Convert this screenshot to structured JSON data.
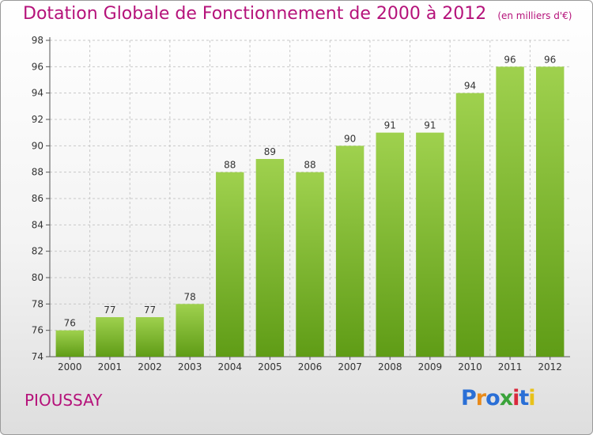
{
  "header": {
    "title": "Dotation Globale de Fonctionnement de 2000 à 2012",
    "subtitle": "(en milliers d'€)"
  },
  "footer": {
    "town": "PIOUSSAY",
    "logo_text": "Proxiti"
  },
  "colors": {
    "title": "#b5127a",
    "bar_light": "#9fd14e",
    "bar_dark": "#5f9c16",
    "logo": [
      "#2a6fd6",
      "#e88a1a",
      "#2a6fd6",
      "#3aa33a",
      "#d9283c",
      "#2a6fd6",
      "#e8c21a"
    ]
  },
  "chart_data": {
    "type": "bar",
    "title": "Dotation Globale de Fonctionnement de 2000 à 2012",
    "subtitle": "(en milliers d'€)",
    "categories": [
      "2000",
      "2001",
      "2002",
      "2003",
      "2004",
      "2005",
      "2006",
      "2007",
      "2008",
      "2009",
      "2010",
      "2011",
      "2012"
    ],
    "values": [
      76,
      77,
      77,
      78,
      88,
      89,
      88,
      90,
      91,
      91,
      94,
      96,
      96
    ],
    "y_ticks": [
      74,
      76,
      78,
      80,
      82,
      84,
      86,
      88,
      90,
      92,
      94,
      96,
      98
    ],
    "ylim": [
      74,
      98
    ],
    "grid": true,
    "legend": "none"
  }
}
